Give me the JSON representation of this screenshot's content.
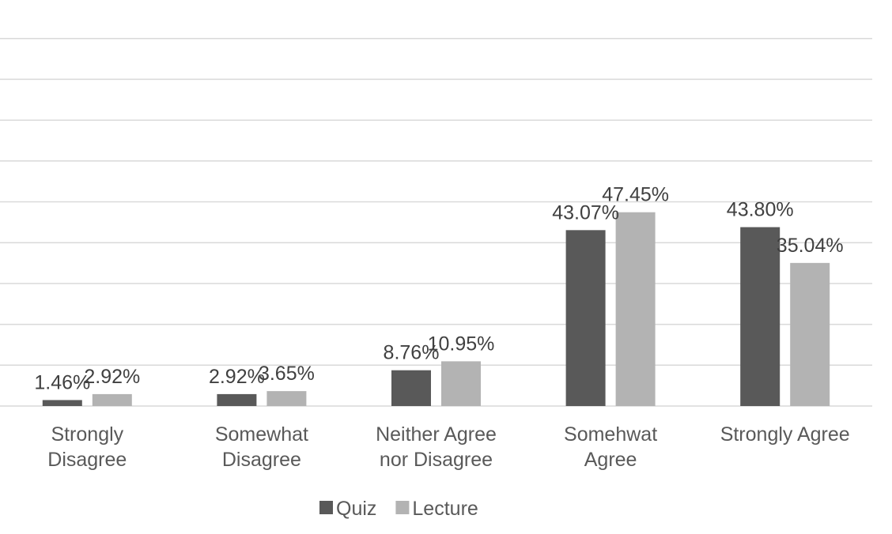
{
  "chart_data": {
    "type": "bar",
    "categories": [
      [
        "Strongly",
        "Disagree"
      ],
      [
        "Somewhat",
        "Disagree"
      ],
      [
        "Neither Agree",
        "nor Disagree"
      ],
      [
        "Somehwat",
        "Agree"
      ],
      [
        "Strongly Agree"
      ]
    ],
    "series": [
      {
        "name": "Quiz",
        "color": "#595959",
        "values": [
          1.46,
          2.92,
          8.76,
          43.07,
          43.8
        ],
        "labels": [
          "1.46%",
          "2.92%",
          "8.76%",
          "43.07%",
          "43.80%"
        ]
      },
      {
        "name": "Lecture",
        "color": "#b3b3b3",
        "values": [
          2.92,
          3.65,
          10.95,
          47.45,
          35.04
        ],
        "labels": [
          "2.92%",
          "3.65%",
          "10.95%",
          "47.45%",
          "35.04%"
        ]
      }
    ],
    "ylim": [
      0,
      90
    ],
    "gridlines_every": 10,
    "grid": true,
    "y_axis_visible": false,
    "legend": "bottom",
    "title": "",
    "xlabel": "",
    "ylabel": ""
  }
}
